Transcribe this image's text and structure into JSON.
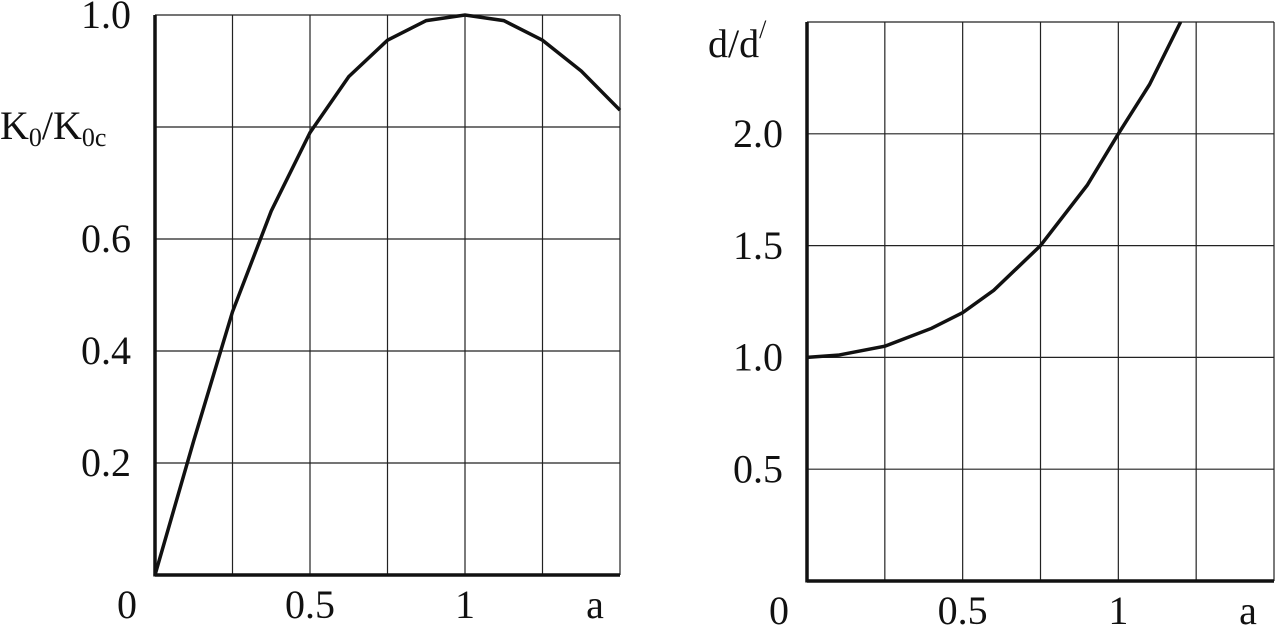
{
  "chart_data": [
    {
      "type": "line",
      "ylabel_parts": [
        "K",
        "0",
        "/K",
        "0c"
      ],
      "xlabel": "a",
      "x": [
        0,
        0.125,
        0.25,
        0.375,
        0.5,
        0.625,
        0.75,
        0.875,
        1,
        1.125,
        1.25,
        1.375,
        1.5
      ],
      "series": [
        {
          "color": "#111111",
          "values": [
            0,
            0.24,
            0.47,
            0.65,
            0.79,
            0.89,
            0.955,
            0.99,
            1.0,
            0.99,
            0.955,
            0.9,
            0.83
          ]
        }
      ],
      "xlim": [
        0,
        1.5
      ],
      "ylim": [
        0,
        1
      ],
      "xticks": [
        {
          "value": 0,
          "label": "0"
        },
        {
          "value": 0.25,
          "label": null
        },
        0.5,
        {
          "value": 0.75,
          "label": null
        },
        1,
        {
          "value": 1.25,
          "label": null
        },
        {
          "value": 1.5,
          "label": null
        }
      ],
      "yticks": [
        {
          "value": 0.2,
          "label": "0.2"
        },
        {
          "value": 0.4,
          "label": "0.4"
        },
        {
          "value": 0.6,
          "label": "0.6"
        },
        {
          "value": 0.8,
          "label": null
        },
        {
          "value": 1,
          "label": "1.0"
        }
      ],
      "grid": true
    },
    {
      "type": "line",
      "ylabel_parts": [
        "d/d",
        "/"
      ],
      "xlabel": "a",
      "x": [
        0,
        0.1,
        0.25,
        0.4,
        0.5,
        0.6,
        0.75,
        0.9,
        1,
        1.1,
        1.2
      ],
      "series": [
        {
          "color": "#111111",
          "values": [
            1.0,
            1.01,
            1.05,
            1.13,
            1.2,
            1.3,
            1.5,
            1.77,
            2.0,
            2.22,
            2.5
          ]
        }
      ],
      "xlim": [
        0,
        1.5
      ],
      "ylim": [
        0,
        2.5
      ],
      "xticks": [
        {
          "value": 0,
          "label": "0"
        },
        {
          "value": 0.25,
          "label": null
        },
        0.5,
        {
          "value": 0.75,
          "label": null
        },
        1,
        {
          "value": 1.25,
          "label": null
        },
        {
          "value": 1.5,
          "label": null
        }
      ],
      "yticks": [
        0.5,
        {
          "value": 1,
          "label": "1.0"
        },
        1.5,
        {
          "value": 2,
          "label": "2.0"
        },
        {
          "value": 2.5,
          "label": null
        }
      ],
      "grid": true
    }
  ]
}
